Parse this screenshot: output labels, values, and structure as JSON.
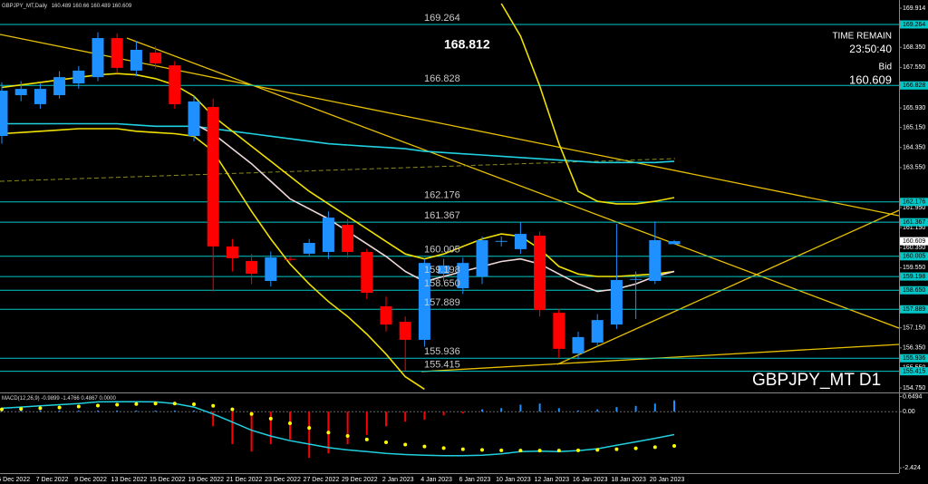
{
  "header": {
    "symbol": "GBPJPY_MT,Daily"
  },
  "info": {
    "time_label": "TIME REMAIN",
    "time": "23:50:40",
    "bid_label": "Bid",
    "bid": 160.609
  },
  "watermark": "GBPJPY_MT D1",
  "annotation": 168.812,
  "chart_data": [
    {
      "type": "candlestick",
      "categories": [
        null,
        "5 Dec 2022",
        null,
        "7 Dec 2022",
        null,
        "9 Dec 2022",
        null,
        "13 Dec 2022",
        null,
        "15 Dec 2022",
        null,
        "19 Dec 2022",
        null,
        "21 Dec 2022",
        null,
        "23 Dec 2022",
        null,
        "27 Dec 2022",
        null,
        "29 Dec 2022",
        null,
        "2 Jan 2023",
        null,
        "4 Jan 2023",
        null,
        "6 Jan 2023",
        null,
        "10 Jan 2023",
        null,
        "12 Jan 2023",
        null,
        "16 Jan 2023",
        null,
        "18 Jan 2023",
        null,
        "20 Jan 2023"
      ],
      "open": [
        164.81,
        166.44,
        166.08,
        166.44,
        166.91,
        167.16,
        168.72,
        167.42,
        168.14,
        167.63,
        164.81,
        165.97,
        160.4,
        159.82,
        159.02,
        159.9,
        160.11,
        160.18,
        161.26,
        160.18,
        158.01,
        157.39,
        156.67,
        159.31,
        158.73,
        159.2,
        160.61,
        160.29,
        160.83,
        157.75,
        156.13,
        156.56,
        157.28,
        159.09,
        159.02,
        160.489
      ],
      "high": [
        166.95,
        167.0,
        166.9,
        167.4,
        167.6,
        168.95,
        168.9,
        168.6,
        168.4,
        167.8,
        166.4,
        166.3,
        160.7,
        160.1,
        160.2,
        160.0,
        160.7,
        161.8,
        161.5,
        160.3,
        158.4,
        157.6,
        159.9,
        159.9,
        159.95,
        160.8,
        160.8,
        161.367,
        161.0,
        157.9,
        157.0,
        157.7,
        161.3,
        159.4,
        161.4,
        160.66
      ],
      "low": [
        164.5,
        166.2,
        165.9,
        166.3,
        166.7,
        167.0,
        167.3,
        167.2,
        167.5,
        165.9,
        164.6,
        158.6,
        159.4,
        158.9,
        158.8,
        159.8,
        160.0,
        159.9,
        159.95,
        158.3,
        157.0,
        155.415,
        156.4,
        159.0,
        158.5,
        158.9,
        160.4,
        160.1,
        157.6,
        155.936,
        155.9,
        156.4,
        157.1,
        157.5,
        158.9,
        160.489
      ],
      "close": [
        166.62,
        166.69,
        166.69,
        167.16,
        167.42,
        168.72,
        167.53,
        168.25,
        167.71,
        166.08,
        166.19,
        160.4,
        159.93,
        159.31,
        159.96,
        159.88,
        160.54,
        161.55,
        160.18,
        158.55,
        157.28,
        156.67,
        159.74,
        159.64,
        159.74,
        160.65,
        160.62,
        160.9,
        157.86,
        156.31,
        156.78,
        157.46,
        159.06,
        159.1,
        160.65,
        160.609
      ],
      "up_color": "#1e90ff",
      "down_color": "#ff0000",
      "ylim": [
        154.605,
        170.24
      ],
      "yticks": [
        169.914,
        {
          "value": 168.35,
          "label": "168.350"
        },
        {
          "value": 167.55,
          "label": "167.550"
        },
        {
          "value": 165.93,
          "label": "165.930"
        },
        {
          "value": 165.15,
          "label": "165.150"
        },
        {
          "value": 164.35,
          "label": "164.350"
        },
        {
          "value": 163.55,
          "label": "163.550"
        },
        {
          "value": 161.95,
          "label": "161.950"
        },
        {
          "value": 161.15,
          "label": "161.150"
        },
        {
          "value": 160.35,
          "label": "160.350"
        },
        {
          "value": 159.55,
          "label": "159.550"
        },
        {
          "value": 157.15,
          "label": "157.150"
        },
        {
          "value": 156.35,
          "label": "156.350"
        },
        {
          "value": 155.55,
          "label": "155.550"
        },
        {
          "value": 154.75,
          "label": "154.750"
        }
      ],
      "levels": [
        169.264,
        166.828,
        162.176,
        161.367,
        160.005,
        159.198,
        {
          "value": 158.65,
          "label": "158.650"
        },
        157.889,
        155.936,
        155.415
      ],
      "level_color": "#00c8c8",
      "lines": [
        {
          "color": "#20d0e0",
          "values": [
            165.3,
            165.3,
            165.3,
            165.3,
            165.3,
            165.3,
            165.3,
            165.25,
            165.2,
            165.2,
            165.2,
            165.1,
            165.0,
            164.9,
            164.8,
            164.7,
            164.6,
            164.5,
            164.45,
            164.4,
            164.35,
            164.3,
            164.2,
            164.15,
            164.1,
            164.05,
            164.0,
            163.95,
            163.9,
            163.85,
            163.8,
            163.75,
            163.75,
            163.75,
            163.75,
            163.8
          ]
        },
        {
          "color": "#f0e000",
          "values": [
            166.75,
            166.85,
            166.95,
            167.05,
            167.15,
            167.25,
            167.3,
            167.25,
            167.1,
            166.85,
            166.4,
            165.6,
            165.0,
            164.4,
            163.8,
            163.2,
            162.6,
            162.1,
            161.6,
            161.1,
            160.6,
            160.1,
            159.9,
            160.1,
            160.4,
            160.7,
            160.9,
            160.8,
            160.3,
            159.6,
            159.3,
            159.2,
            159.2,
            159.25,
            159.3,
            159.4
          ]
        },
        {
          "color": "#f0e000",
          "values": [
            164.9,
            164.95,
            165.0,
            165.05,
            165.1,
            165.1,
            165.1,
            165.0,
            164.95,
            164.9,
            164.8,
            164.2,
            163.0,
            161.8,
            160.7,
            159.7,
            158.9,
            158.2,
            157.6,
            156.9,
            156.1,
            155.2,
            154.7,
            null,
            null,
            null,
            null,
            null,
            null,
            null,
            null,
            null,
            null,
            null,
            null,
            null
          ]
        },
        {
          "color": "#f0e000",
          "values": [
            null,
            null,
            null,
            null,
            null,
            null,
            null,
            null,
            null,
            null,
            null,
            null,
            null,
            null,
            null,
            null,
            null,
            null,
            null,
            null,
            null,
            null,
            null,
            null,
            null,
            null,
            170.1,
            168.8,
            166.8,
            164.5,
            162.6,
            162.2,
            162.1,
            162.1,
            162.2,
            162.35
          ]
        },
        {
          "color": "#f0d8d8",
          "values": [
            null,
            null,
            null,
            null,
            null,
            null,
            null,
            null,
            null,
            null,
            165.3,
            164.9,
            164.3,
            163.7,
            163.0,
            162.3,
            161.9,
            161.5,
            161.0,
            160.5,
            160.0,
            159.4,
            159.0,
            159.2,
            159.4,
            159.6,
            159.8,
            159.9,
            159.7,
            159.3,
            158.9,
            158.6,
            158.7,
            158.9,
            159.2,
            159.4
          ]
        }
      ]
    },
    {
      "type": "macd",
      "title": "MACD(12,26,9)",
      "histogram": [
        0.05,
        0.05,
        0.05,
        0.05,
        0.05,
        0.05,
        0.05,
        0.05,
        0.05,
        0.05,
        0.05,
        -0.63,
        -1.4,
        -1.72,
        -1.4,
        -1.2,
        -1.99,
        -1.8,
        -1.4,
        -1.0,
        -0.63,
        -0.43,
        -0.35,
        -0.16,
        -0.08,
        0.1,
        0.15,
        0.3,
        0.35,
        0.15,
        0.05,
        0.1,
        0.2,
        0.25,
        0.35,
        0.4867
      ],
      "macd": [
        0.15,
        0.2,
        0.25,
        0.3,
        0.35,
        0.42,
        0.43,
        0.43,
        0.42,
        0.35,
        0.2,
        -0.1,
        -0.45,
        -0.8,
        -1.05,
        -1.25,
        -1.4,
        -1.55,
        -1.65,
        -1.72,
        -1.8,
        -1.85,
        -1.88,
        -1.9,
        -1.9,
        -1.88,
        -1.82,
        -1.72,
        -1.7,
        -1.72,
        -1.68,
        -1.6,
        -1.45,
        -1.3,
        -1.15,
        -0.9899
      ],
      "signal": [
        0.1,
        0.12,
        0.15,
        0.18,
        0.22,
        0.26,
        0.3,
        0.33,
        0.35,
        0.35,
        0.32,
        0.25,
        0.1,
        -0.1,
        -0.3,
        -0.5,
        -0.7,
        -0.9,
        -1.05,
        -1.2,
        -1.32,
        -1.42,
        -1.5,
        -1.57,
        -1.62,
        -1.65,
        -1.67,
        -1.68,
        -1.68,
        -1.68,
        -1.67,
        -1.65,
        -1.62,
        -1.58,
        -1.53,
        -1.4766
      ],
      "level": {
        "value": 0,
        "label": "0.0000"
      },
      "macd_color": "#20d0e0",
      "signal_color": "#ffff00",
      "up_color": "#1e90ff",
      "down_color": "#ff0000",
      "ylim": [
        -2.65,
        0.75
      ],
      "yticks": [
        0.6494,
        {
          "value": 0,
          "label": "0.00"
        },
        -2.424
      ]
    }
  ]
}
